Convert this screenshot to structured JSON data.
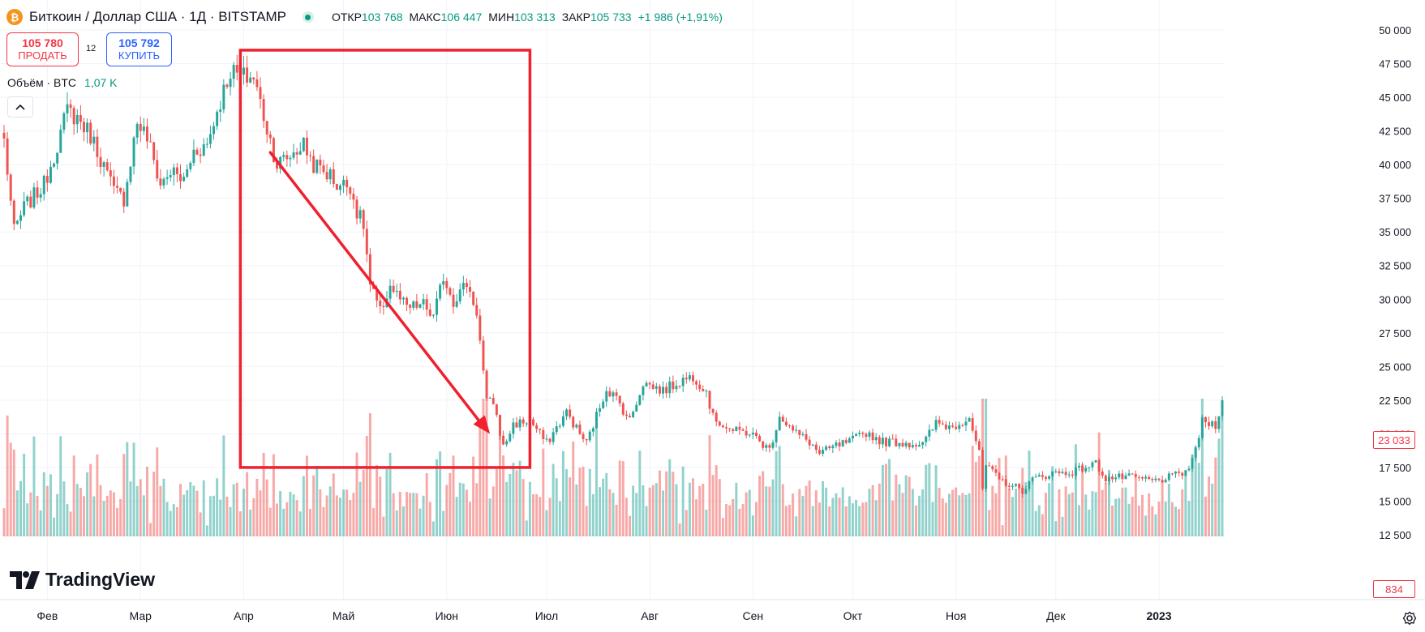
{
  "header": {
    "coin_symbol": "₿",
    "coin_color": "#f7931a",
    "symbol": "Биткоин / Доллар США · 1Д · BITSTAMP",
    "open_label": "ОТКР",
    "open_value": "103 768",
    "high_label": "МАКС",
    "high_value": "106 447",
    "low_label": "МИН",
    "low_value": "103 313",
    "close_label": "ЗАКР",
    "close_value": "105 733",
    "change": "+1 986 (+1,91%)"
  },
  "trade": {
    "sell_price": "105 780",
    "sell_label": "ПРОДАТЬ",
    "spread": "12",
    "buy_price": "105 792",
    "buy_label": "КУПИТЬ"
  },
  "volume_legend": {
    "label": "Объём · BTC",
    "value": "1,07 K"
  },
  "logo": {
    "text": "TradingView"
  },
  "price_labels": {
    "last_price": "23 033",
    "last_volume": "834"
  },
  "colors": {
    "up": "#26a69a",
    "down": "#ef5350",
    "annotation": "#f0202e",
    "up_text": "#089981",
    "down_text": "#f23645"
  },
  "chart_data": {
    "type": "candlestick",
    "title": "Биткоин / Доллар США · 1Д · BITSTAMP",
    "x_axis_labels": [
      "Фев",
      "Мар",
      "Апр",
      "Май",
      "Июн",
      "Июл",
      "Авг",
      "Сен",
      "Окт",
      "Ноя",
      "Дек",
      "2023"
    ],
    "x_axis_label_dates": [
      "2022-02-01",
      "2022-03-01",
      "2022-04-01",
      "2022-05-01",
      "2022-06-01",
      "2022-07-01",
      "2022-08-01",
      "2022-09-01",
      "2022-10-01",
      "2022-11-01",
      "2022-12-01",
      "2023-01-01"
    ],
    "y_ticks": [
      50000,
      47500,
      45000,
      42500,
      40000,
      37500,
      35000,
      32500,
      30000,
      27500,
      25000,
      22500,
      20000,
      17500,
      15000,
      12500
    ],
    "y_tick_labels": [
      "50 000",
      "47 500",
      "45 000",
      "42 500",
      "40 000",
      "37 500",
      "35 000",
      "32 500",
      "30 000",
      "27 500",
      "25 000",
      "22 500",
      "20 000",
      "17 500",
      "15 000",
      "12 500"
    ],
    "ylim": [
      12500,
      50000
    ],
    "grid": true,
    "date_range": [
      "2022-01-19",
      "2023-01-20"
    ],
    "close_anchors": [
      [
        "2022-01-19",
        41800
      ],
      [
        "2022-01-22",
        35000
      ],
      [
        "2022-01-25",
        36800
      ],
      [
        "2022-01-31",
        38500
      ],
      [
        "2022-02-04",
        41500
      ],
      [
        "2022-02-07",
        44000
      ],
      [
        "2022-02-10",
        43500
      ],
      [
        "2022-02-14",
        42200
      ],
      [
        "2022-02-17",
        40500
      ],
      [
        "2022-02-21",
        38000
      ],
      [
        "2022-02-24",
        37500
      ],
      [
        "2022-02-28",
        43200
      ],
      [
        "2022-03-03",
        42000
      ],
      [
        "2022-03-07",
        38500
      ],
      [
        "2022-03-10",
        39500
      ],
      [
        "2022-03-14",
        38800
      ],
      [
        "2022-03-17",
        41000
      ],
      [
        "2022-03-21",
        41500
      ],
      [
        "2022-03-24",
        44000
      ],
      [
        "2022-03-28",
        47000
      ],
      [
        "2022-03-31",
        46500
      ],
      [
        "2022-04-04",
        46500
      ],
      [
        "2022-04-08",
        42700
      ],
      [
        "2022-04-11",
        40000
      ],
      [
        "2022-04-14",
        40500
      ],
      [
        "2022-04-19",
        41500
      ],
      [
        "2022-04-22",
        40000
      ],
      [
        "2022-04-27",
        39200
      ],
      [
        "2022-04-29",
        38500
      ],
      [
        "2022-05-03",
        38500
      ],
      [
        "2022-05-05",
        36500
      ],
      [
        "2022-05-07",
        35500
      ],
      [
        "2022-05-09",
        31000
      ],
      [
        "2022-05-12",
        29000
      ],
      [
        "2022-05-15",
        31000
      ],
      [
        "2022-05-20",
        29300
      ],
      [
        "2022-05-25",
        29600
      ],
      [
        "2022-05-28",
        28600
      ],
      [
        "2022-05-31",
        31700
      ],
      [
        "2022-06-03",
        29900
      ],
      [
        "2022-06-07",
        31200
      ],
      [
        "2022-06-10",
        29100
      ],
      [
        "2022-06-13",
        22300
      ],
      [
        "2022-06-15",
        22400
      ],
      [
        "2022-06-18",
        19000
      ],
      [
        "2022-06-21",
        20700
      ],
      [
        "2022-06-26",
        21000
      ],
      [
        "2022-07-01",
        19300
      ],
      [
        "2022-07-07",
        21600
      ],
      [
        "2022-07-11",
        20000
      ],
      [
        "2022-07-13",
        19300
      ],
      [
        "2022-07-19",
        23400
      ],
      [
        "2022-07-22",
        22600
      ],
      [
        "2022-07-26",
        21000
      ],
      [
        "2022-07-30",
        23800
      ],
      [
        "2022-08-05",
        23200
      ],
      [
        "2022-08-10",
        23900
      ],
      [
        "2022-08-14",
        24300
      ],
      [
        "2022-08-18",
        23200
      ],
      [
        "2022-08-20",
        21200
      ],
      [
        "2022-08-26",
        20200
      ],
      [
        "2022-08-31",
        20100
      ],
      [
        "2022-09-06",
        18800
      ],
      [
        "2022-09-09",
        21400
      ],
      [
        "2022-09-13",
        20200
      ],
      [
        "2022-09-18",
        19400
      ],
      [
        "2022-09-21",
        18500
      ],
      [
        "2022-09-26",
        19100
      ],
      [
        "2022-09-30",
        19400
      ],
      [
        "2022-10-05",
        20100
      ],
      [
        "2022-10-10",
        19400
      ],
      [
        "2022-10-13",
        19400
      ],
      [
        "2022-10-18",
        19300
      ],
      [
        "2022-10-22",
        19200
      ],
      [
        "2022-10-26",
        20800
      ],
      [
        "2022-10-31",
        20500
      ],
      [
        "2022-11-05",
        21300
      ],
      [
        "2022-11-08",
        18500
      ],
      [
        "2022-11-09",
        15900
      ],
      [
        "2022-11-10",
        17600
      ],
      [
        "2022-11-14",
        16600
      ],
      [
        "2022-11-21",
        15800
      ],
      [
        "2022-11-24",
        16600
      ],
      [
        "2022-11-30",
        17100
      ],
      [
        "2022-12-05",
        17100
      ],
      [
        "2022-12-13",
        17800
      ],
      [
        "2022-12-16",
        16700
      ],
      [
        "2022-12-22",
        16800
      ],
      [
        "2022-12-31",
        16500
      ],
      [
        "2023-01-06",
        16900
      ],
      [
        "2023-01-09",
        17200
      ],
      [
        "2023-01-11",
        17900
      ],
      [
        "2023-01-13",
        19900
      ],
      [
        "2023-01-14",
        20900
      ],
      [
        "2023-01-18",
        20700
      ],
      [
        "2023-01-20",
        22600
      ]
    ],
    "last_price": 23033,
    "last_volume": 834,
    "volume_series_name": "Объём · BTC"
  },
  "annotations": {
    "rectangle": {
      "from_date": "2022-03-31",
      "to_date": "2022-06-26",
      "top": 48500,
      "bottom": 17500
    },
    "arrow": {
      "from_date": "2022-04-09",
      "from_price": 40900,
      "to_date": "2022-06-14",
      "to_price": 20000
    }
  }
}
